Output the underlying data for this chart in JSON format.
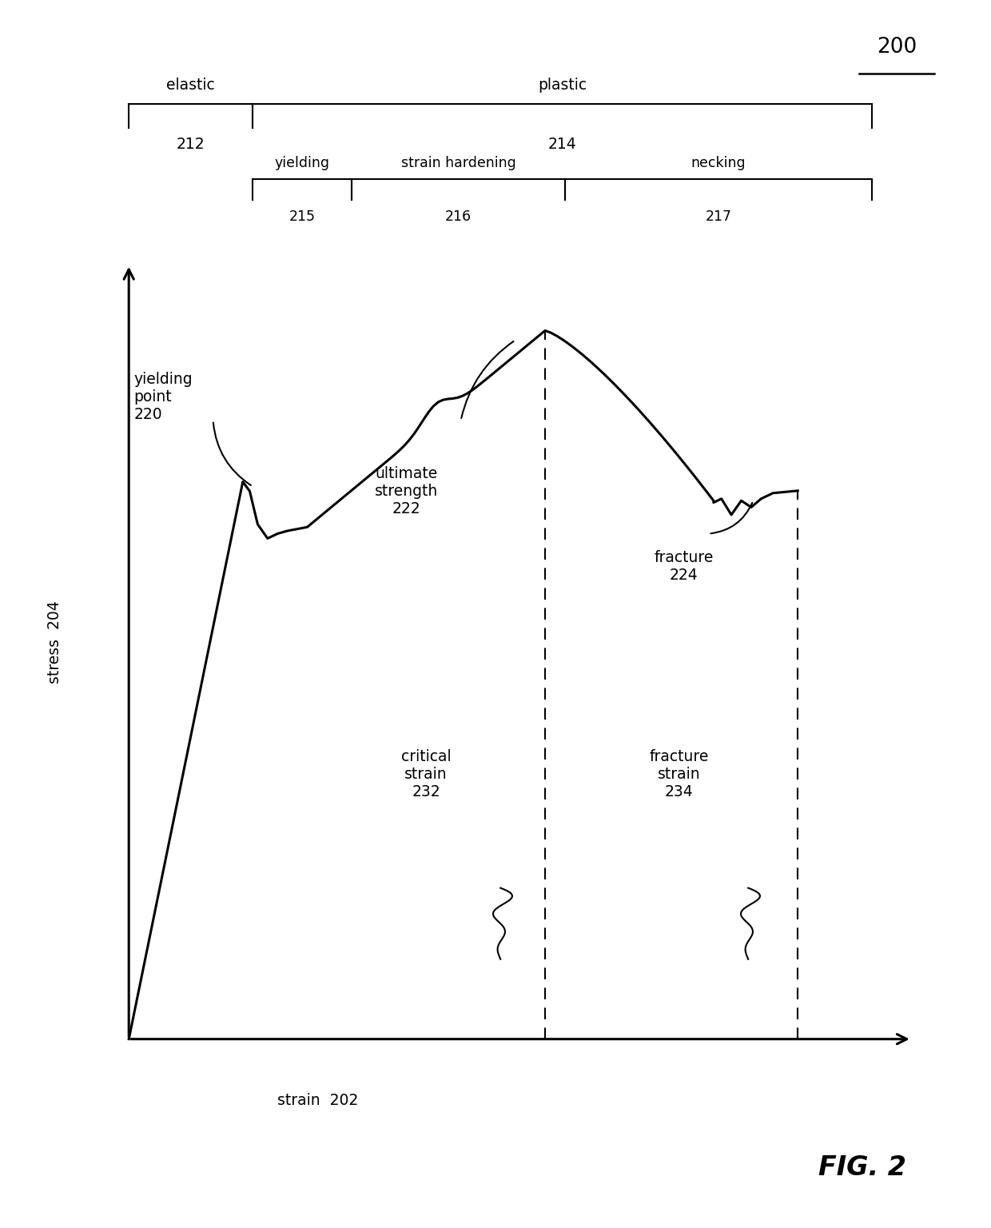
{
  "fig_label": "200",
  "fig_number": "FIG. 2",
  "xlabel": "strain  202",
  "ylabel": "stress  204",
  "background_color": "#ffffff",
  "line_color": "#000000",
  "elastic_text": "elastic",
  "elastic_num": "212",
  "plastic_text": "plastic",
  "plastic_num": "214",
  "yielding_text": "yielding",
  "yielding_num": "215",
  "sh_text": "strain hardening",
  "sh_num": "216",
  "necking_text": "necking",
  "necking_num": "217",
  "yp_text": "yielding\npoint\n220",
  "us_text": "ultimate\nstrength\n222",
  "frac_text": "fracture\n224",
  "cs_text": "critical\nstrain\n232",
  "fs_text": "fracture\nstrain\n234"
}
